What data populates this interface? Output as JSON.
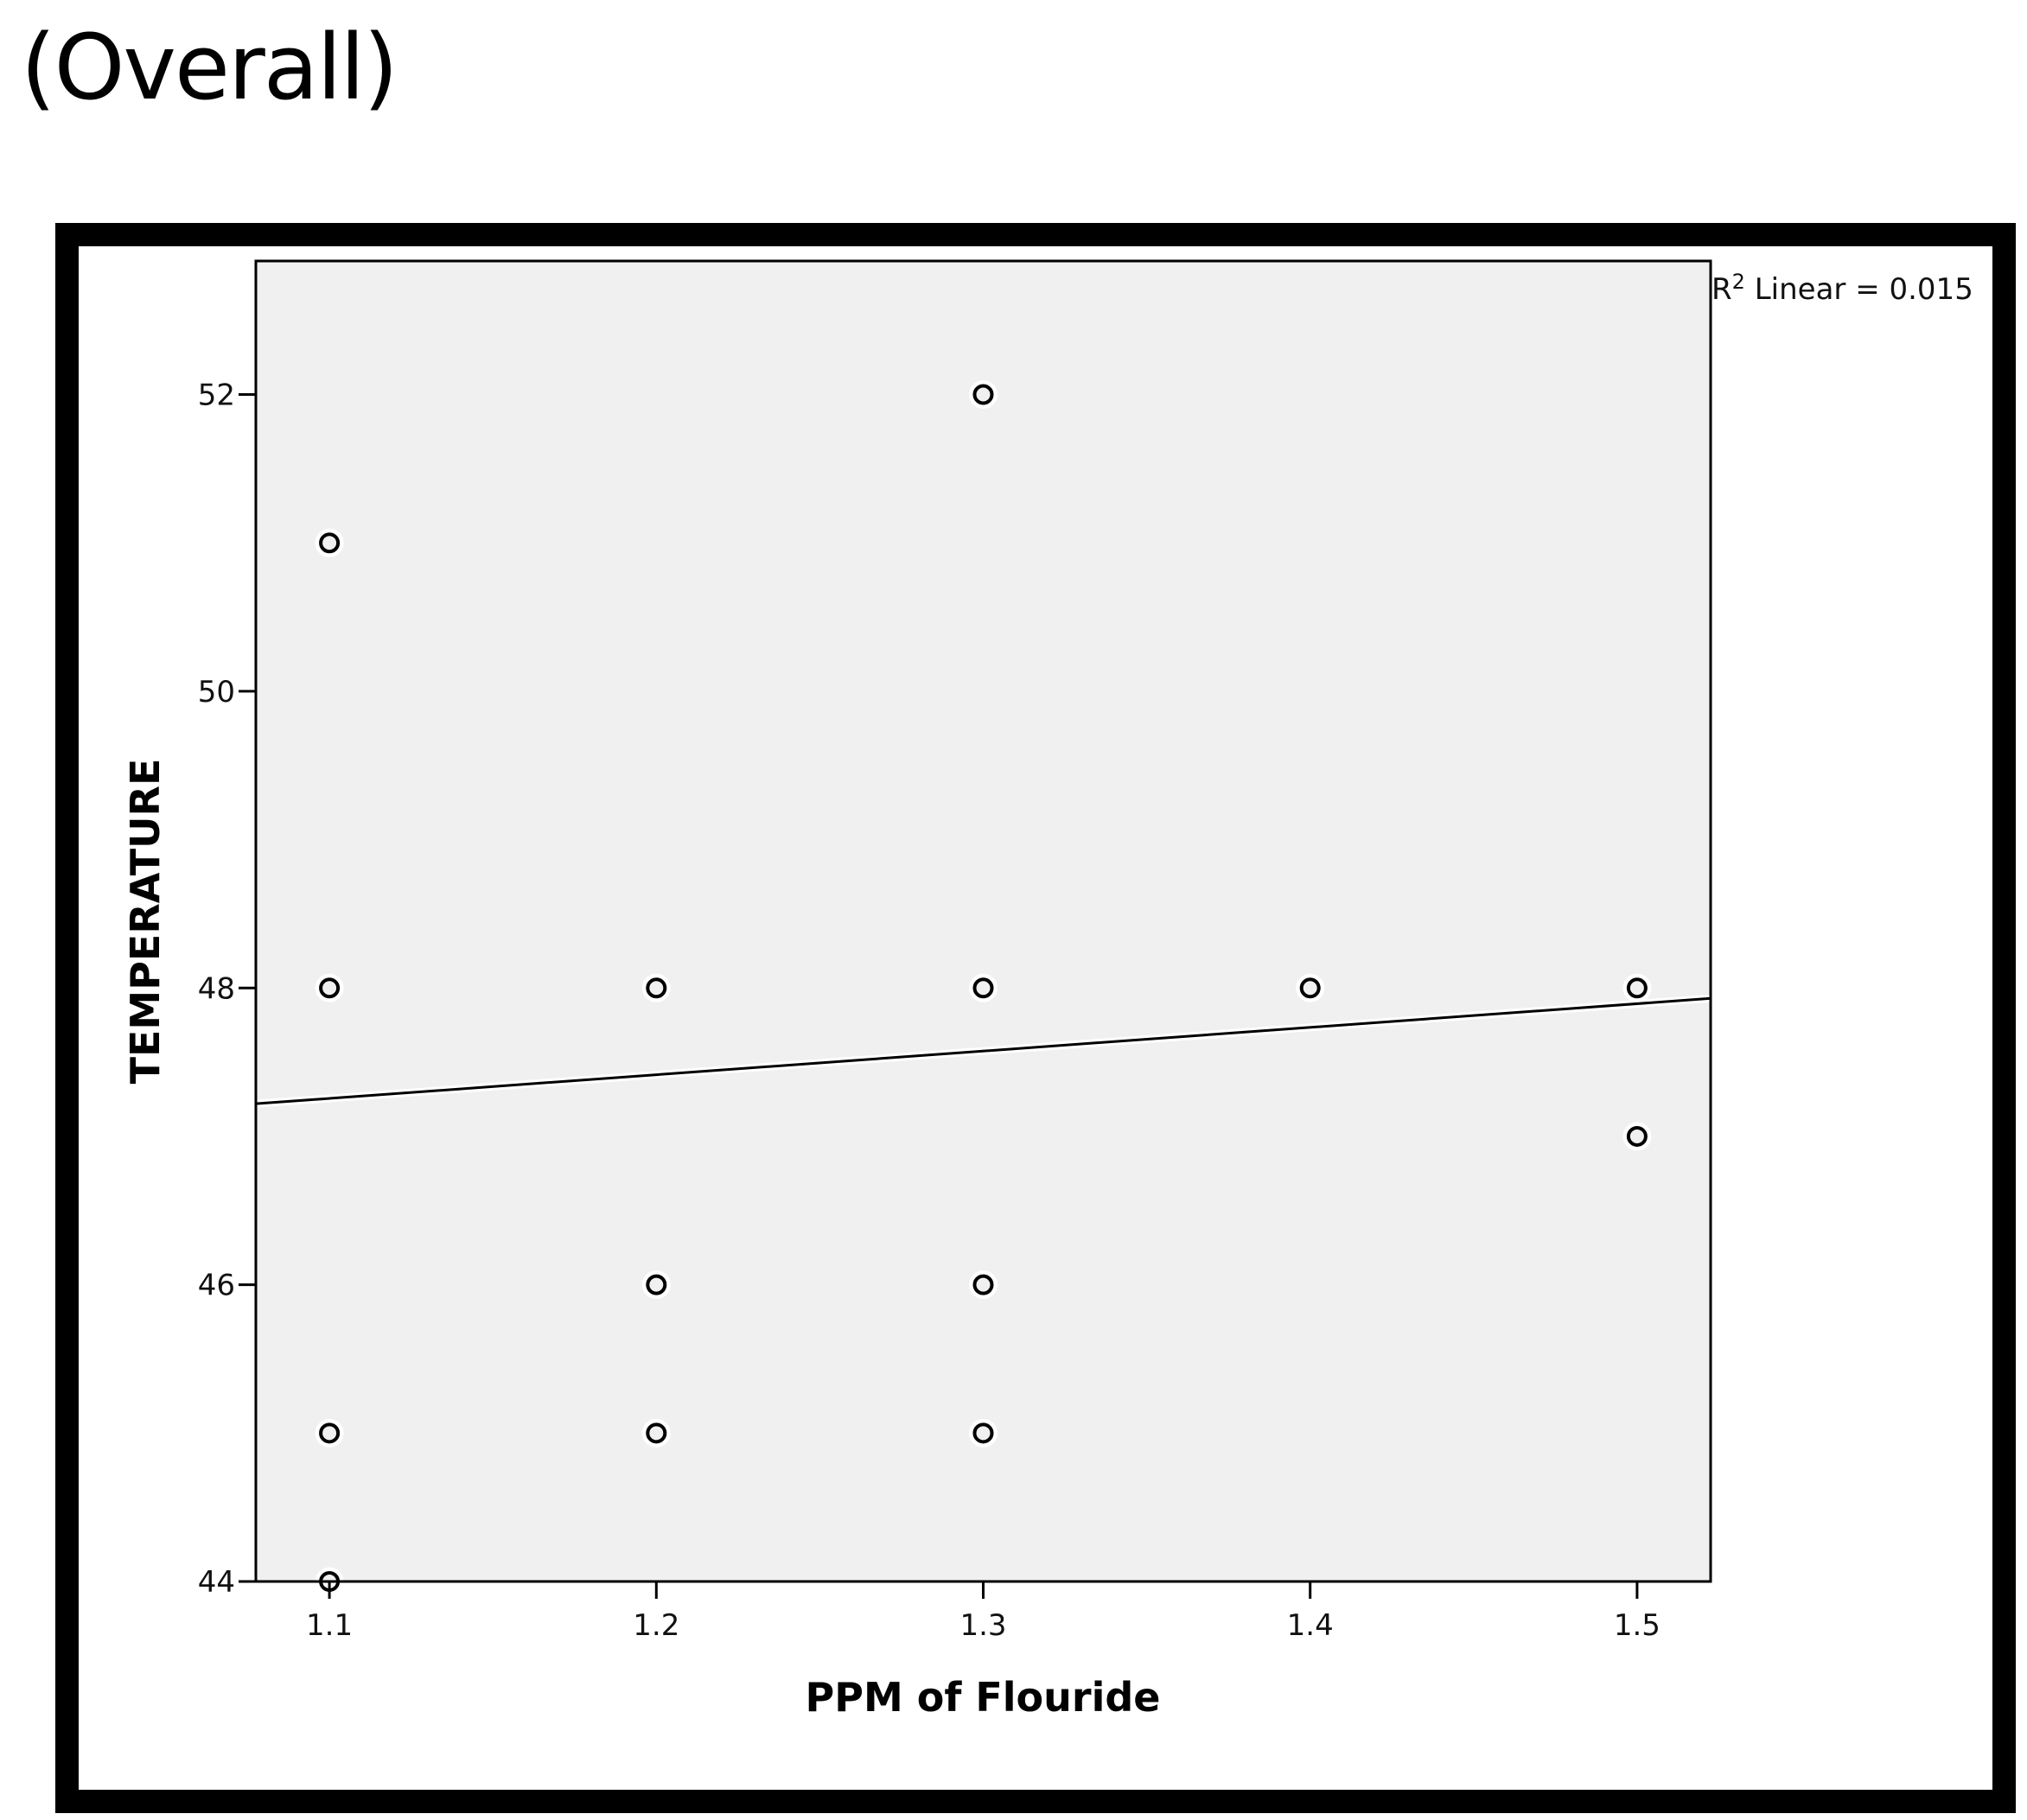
{
  "heading": "(Overall)",
  "chart_data": {
    "type": "scatter",
    "xlabel": "PPM of Flouride",
    "ylabel": "TEMPERATURE",
    "x_ticks": [
      1.1,
      1.2,
      1.3,
      1.4,
      1.5
    ],
    "y_ticks": [
      44,
      46,
      48,
      50,
      52
    ],
    "xlim": [
      1.0775,
      1.5225
    ],
    "ylim": [
      44,
      52.9
    ],
    "grid": false,
    "points": [
      {
        "x": 1.1,
        "y": 51
      },
      {
        "x": 1.1,
        "y": 48
      },
      {
        "x": 1.1,
        "y": 45
      },
      {
        "x": 1.1,
        "y": 44
      },
      {
        "x": 1.2,
        "y": 48
      },
      {
        "x": 1.2,
        "y": 46
      },
      {
        "x": 1.2,
        "y": 45
      },
      {
        "x": 1.3,
        "y": 52
      },
      {
        "x": 1.3,
        "y": 48
      },
      {
        "x": 1.3,
        "y": 46
      },
      {
        "x": 1.3,
        "y": 45
      },
      {
        "x": 1.4,
        "y": 48
      },
      {
        "x": 1.5,
        "y": 48
      },
      {
        "x": 1.5,
        "y": 47
      }
    ],
    "fit_line": {
      "x": [
        1.0775,
        1.5225
      ],
      "y": [
        47.22,
        47.93
      ]
    },
    "annotation": {
      "prefix": "R",
      "superscript": "2",
      "text": " Linear = 0.015"
    },
    "colors": {
      "plot_background": "#f0f0f0",
      "marker": "#000000",
      "line": "#000000"
    }
  }
}
